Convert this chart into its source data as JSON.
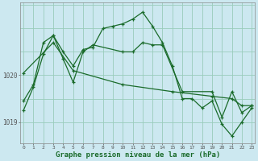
{
  "background_color": "#cce8f0",
  "grid_color": "#99ccbb",
  "line_color": "#1a6b2a",
  "xlabel": "Graphe pression niveau de la mer (hPa)",
  "xlabel_fontsize": 6.5,
  "xtick_labels": [
    "0",
    "1",
    "2",
    "3",
    "4",
    "5",
    "6",
    "7",
    "8",
    "9",
    "10",
    "11",
    "12",
    "13",
    "14",
    "15",
    "16",
    "17",
    "18",
    "19",
    "20",
    "21",
    "22",
    "23"
  ],
  "ytick_labels": [
    "1019",
    "1020"
  ],
  "ytick_vals": [
    1019.0,
    1020.0
  ],
  "ylim": [
    1018.55,
    1021.55
  ],
  "xlim": [
    -0.3,
    23.3
  ],
  "line1_x": [
    0,
    1,
    2,
    3,
    4,
    5,
    6,
    7,
    8,
    9,
    10,
    11,
    12,
    13,
    14,
    15,
    16,
    17,
    18,
    19,
    20,
    21,
    22,
    23
  ],
  "line1_y": [
    1019.25,
    1019.75,
    1020.45,
    1020.85,
    1020.5,
    1020.2,
    1020.55,
    1020.6,
    1021.0,
    1021.05,
    1021.1,
    1021.2,
    1021.35,
    1021.05,
    1020.7,
    1020.2,
    1019.5,
    1019.5,
    1019.3,
    1019.45,
    1018.95,
    1018.7,
    1019.0,
    1019.3
  ],
  "line2_x": [
    0,
    1,
    2,
    3,
    4,
    5,
    6,
    7,
    10,
    11,
    12,
    13,
    14,
    16,
    19,
    20,
    21,
    22,
    23
  ],
  "line2_y": [
    1019.45,
    1019.8,
    1020.7,
    1020.85,
    1020.35,
    1019.85,
    1020.5,
    1020.65,
    1020.5,
    1020.5,
    1020.7,
    1020.65,
    1020.65,
    1019.65,
    1019.65,
    1019.1,
    1019.65,
    1019.2,
    1019.35
  ],
  "line3_x": [
    0,
    3,
    5,
    10,
    15,
    19,
    21,
    22,
    23
  ],
  "line3_y": [
    1020.05,
    1020.7,
    1020.1,
    1019.8,
    1019.65,
    1019.55,
    1019.5,
    1019.35,
    1019.35
  ],
  "hgrid_vals": [
    1018.5,
    1019.0,
    1019.5,
    1020.0,
    1020.5,
    1021.0,
    1021.5
  ]
}
